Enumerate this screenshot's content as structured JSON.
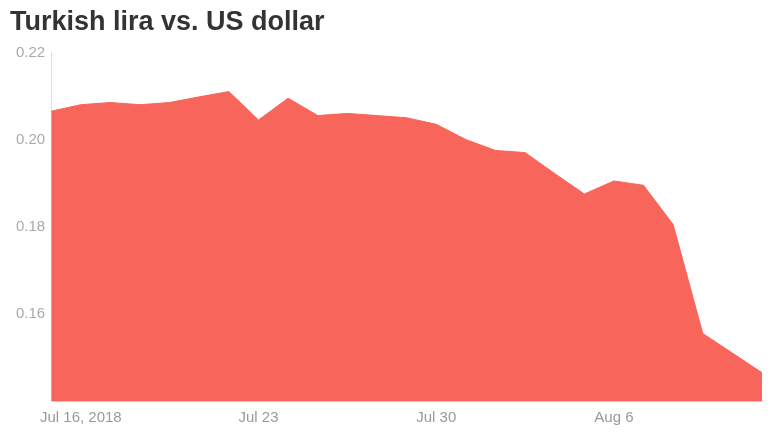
{
  "chart_data": {
    "type": "area",
    "title": "Turkish lira vs. US dollar",
    "categories": [
      null,
      "Jul 16, 2018",
      null,
      null,
      null,
      null,
      null,
      "Jul 23",
      null,
      null,
      null,
      null,
      null,
      "Jul 30",
      null,
      null,
      null,
      null,
      null,
      "Aug 6",
      null,
      null,
      null,
      null,
      null
    ],
    "values": [
      0.2065,
      0.208,
      0.2085,
      0.208,
      0.2085,
      0.2098,
      0.211,
      0.2045,
      0.2095,
      0.2055,
      0.206,
      0.2055,
      0.205,
      0.2035,
      0.2,
      0.1975,
      0.197,
      0.1922,
      0.1875,
      0.1905,
      0.1895,
      0.1805,
      0.1555,
      0.151,
      0.1465
    ],
    "color": "#f8655a",
    "ylim": [
      0.14,
      0.22
    ],
    "yticks": [
      0.16,
      0.18,
      {
        "value": 0.2,
        "label": "0.20"
      },
      0.22
    ],
    "grid": false
  }
}
